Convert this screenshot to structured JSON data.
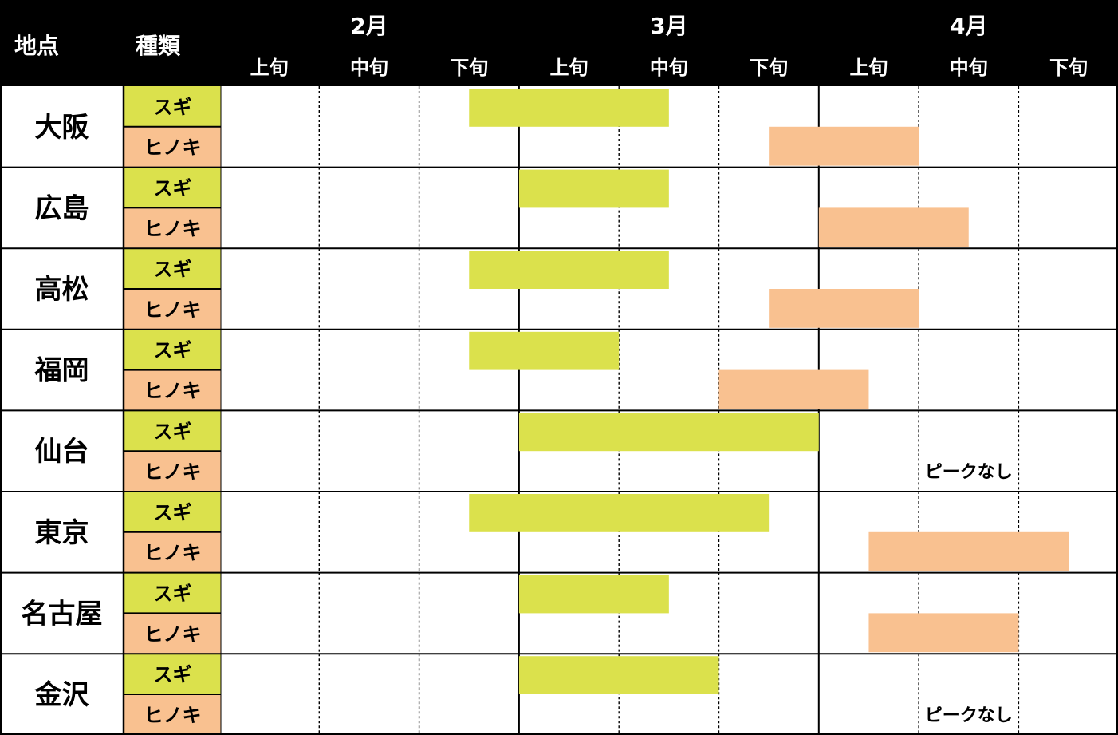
{
  "header": {
    "location_label": "地点",
    "species_label": "種類"
  },
  "colors": {
    "sugi": "#dbe14c",
    "hinoki": "#f9c190",
    "header_bg": "#000000"
  },
  "chart_data": {
    "type": "table",
    "months": [
      "2月",
      "3月",
      "4月"
    ],
    "periods": [
      "上旬",
      "中旬",
      "下旬",
      "上旬",
      "中旬",
      "下旬",
      "上旬",
      "中旬",
      "下旬"
    ],
    "species": [
      "スギ",
      "ヒノキ"
    ],
    "no_peak_text": "ピークなし",
    "locations": [
      {
        "name": "大阪",
        "sugi": [
          2.5,
          4.5
        ],
        "hinoki": [
          5.5,
          7.0
        ]
      },
      {
        "name": "広島",
        "sugi": [
          3.0,
          4.5
        ],
        "hinoki": [
          6.0,
          7.5
        ]
      },
      {
        "name": "高松",
        "sugi": [
          2.5,
          4.5
        ],
        "hinoki": [
          5.5,
          7.0
        ]
      },
      {
        "name": "福岡",
        "sugi": [
          2.5,
          4.0
        ],
        "hinoki": [
          5.0,
          6.5
        ]
      },
      {
        "name": "仙台",
        "sugi": [
          3.0,
          6.0
        ],
        "hinoki": null
      },
      {
        "name": "東京",
        "sugi": [
          2.5,
          5.5
        ],
        "hinoki": [
          6.5,
          8.5
        ]
      },
      {
        "name": "名古屋",
        "sugi": [
          3.0,
          4.5
        ],
        "hinoki": [
          6.5,
          8.0
        ]
      },
      {
        "name": "金沢",
        "sugi": [
          3.0,
          5.0
        ],
        "hinoki": null
      }
    ]
  }
}
